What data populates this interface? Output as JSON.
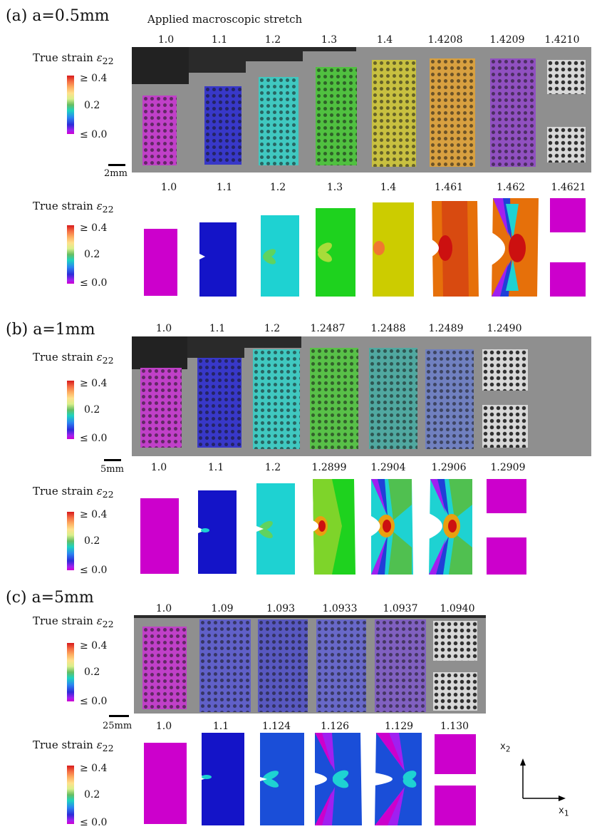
{
  "header": {
    "caption": "Applied macroscopic stretch"
  },
  "legend": {
    "strain_label": "True strain",
    "strain_symbol": "ε",
    "strain_sub": "22",
    "tick_high": "≥ 0.4",
    "tick_mid": "0.2",
    "tick_low": "≤ 0.0"
  },
  "panels": [
    {
      "label": "(a) a=0.5mm",
      "scale": "2mm",
      "exp_stretches": [
        "1.0",
        "1.1",
        "1.2",
        "1.3",
        "1.4",
        "1.4208",
        "1.4209",
        "1.4210"
      ],
      "sim_stretches": [
        "1.0",
        "1.1",
        "1.2",
        "1.3",
        "1.4",
        "1.461",
        "1.462",
        "1.4621"
      ]
    },
    {
      "label": "(b) a=1mm",
      "scale": "5mm",
      "exp_stretches": [
        "1.0",
        "1.1",
        "1.2",
        "1.2487",
        "1.2488",
        "1.2489",
        "1.2490"
      ],
      "sim_stretches": [
        "1.0",
        "1.1",
        "1.2",
        "1.2899",
        "1.2904",
        "1.2906",
        "1.2909"
      ]
    },
    {
      "label": "(c) a=5mm",
      "scale": "25mm",
      "exp_stretches": [
        "1.0",
        "1.09",
        "1.093",
        "1.0933",
        "1.0937",
        "1.0940"
      ],
      "sim_stretches": [
        "1.0",
        "1.1",
        "1.124",
        "1.126",
        "1.129",
        "1.130"
      ]
    }
  ],
  "axes": {
    "x": "x",
    "x_sub": "1",
    "y": "x",
    "y_sub": "2"
  },
  "colors": {
    "magenta": "#cc00cc",
    "blue": "#1414c8",
    "cyan": "#1ed2d2",
    "green": "#1ed21e",
    "yellow": "#cccc00",
    "orange": "#e6700a",
    "red": "#d21e1e"
  }
}
